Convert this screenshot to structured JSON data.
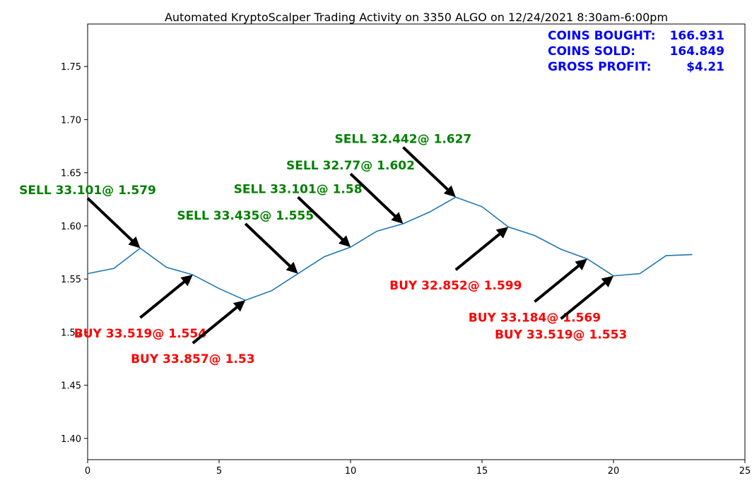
{
  "chart_data": {
    "type": "line",
    "title": "Automated KryptoScalper Trading Activity on 3350 ALGO on 12/24/2021 8:30am-6:00pm",
    "xlabel": "",
    "ylabel": "",
    "xlim": [
      0,
      25
    ],
    "ylim": [
      1.38,
      1.79
    ],
    "xticks": [
      0,
      5,
      10,
      15,
      20,
      25
    ],
    "xtick_labels": [
      "0",
      "5",
      "10",
      "15",
      "20",
      "25"
    ],
    "yticks": [
      1.4,
      1.45,
      1.5,
      1.55,
      1.6,
      1.65,
      1.7,
      1.75
    ],
    "ytick_labels": [
      "1.40",
      "1.45",
      "1.50",
      "1.55",
      "1.60",
      "1.65",
      "1.70",
      "1.75"
    ],
    "grid": false,
    "series": [
      {
        "color": "#1f77b4",
        "x": [
          0,
          1,
          2,
          3,
          4,
          5,
          6,
          7,
          8,
          9,
          10,
          11,
          12,
          13,
          14,
          15,
          16,
          17,
          18,
          19,
          20,
          21,
          22,
          23
        ],
        "y": [
          1.555,
          1.56,
          1.579,
          1.561,
          1.554,
          1.541,
          1.53,
          1.539,
          1.555,
          1.571,
          1.58,
          1.595,
          1.602,
          1.613,
          1.627,
          1.618,
          1.599,
          1.591,
          1.578,
          1.569,
          1.553,
          1.555,
          1.572,
          1.573
        ]
      }
    ],
    "annotations": [
      {
        "text": "SELL 33.101@ 1.579",
        "type": "sell",
        "point": [
          2,
          1.579
        ],
        "text_pos": [
          0,
          1.634
        ]
      },
      {
        "text": "BUY 33.519@ 1.554",
        "type": "buy",
        "point": [
          4,
          1.554
        ],
        "text_pos": [
          2,
          1.499
        ]
      },
      {
        "text": "BUY 33.857@ 1.53",
        "type": "buy",
        "point": [
          6,
          1.53
        ],
        "text_pos": [
          4,
          1.475
        ]
      },
      {
        "text": "SELL 33.435@ 1.555",
        "type": "sell",
        "point": [
          8,
          1.555
        ],
        "text_pos": [
          6,
          1.61
        ]
      },
      {
        "text": "SELL 33.101@ 1.58",
        "type": "sell",
        "point": [
          10,
          1.58
        ],
        "text_pos": [
          8,
          1.635
        ]
      },
      {
        "text": "SELL 32.77@ 1.602",
        "type": "sell",
        "point": [
          12,
          1.602
        ],
        "text_pos": [
          10,
          1.657
        ]
      },
      {
        "text": "SELL 32.442@ 1.627",
        "type": "sell",
        "point": [
          14,
          1.627
        ],
        "text_pos": [
          12,
          1.682
        ]
      },
      {
        "text": "BUY 32.852@ 1.599",
        "type": "buy",
        "point": [
          16,
          1.599
        ],
        "text_pos": [
          14,
          1.544
        ]
      },
      {
        "text": "BUY 33.184@ 1.569",
        "type": "buy",
        "point": [
          19,
          1.569
        ],
        "text_pos": [
          17,
          1.514
        ]
      },
      {
        "text": "BUY 33.519@ 1.553",
        "type": "buy",
        "point": [
          20,
          1.553
        ],
        "text_pos": [
          18,
          1.498
        ]
      }
    ],
    "colors": {
      "sell": "#008000",
      "buy": "#ff0000",
      "stats": "#0000ff",
      "line": "#1f77b4"
    },
    "stats_box": [
      {
        "label": "COINS BOUGHT:",
        "value": "166.931"
      },
      {
        "label": "COINS SOLD:",
        "value": "164.849"
      },
      {
        "label": "GROSS PROFIT:",
        "value": "$4.21"
      }
    ]
  }
}
